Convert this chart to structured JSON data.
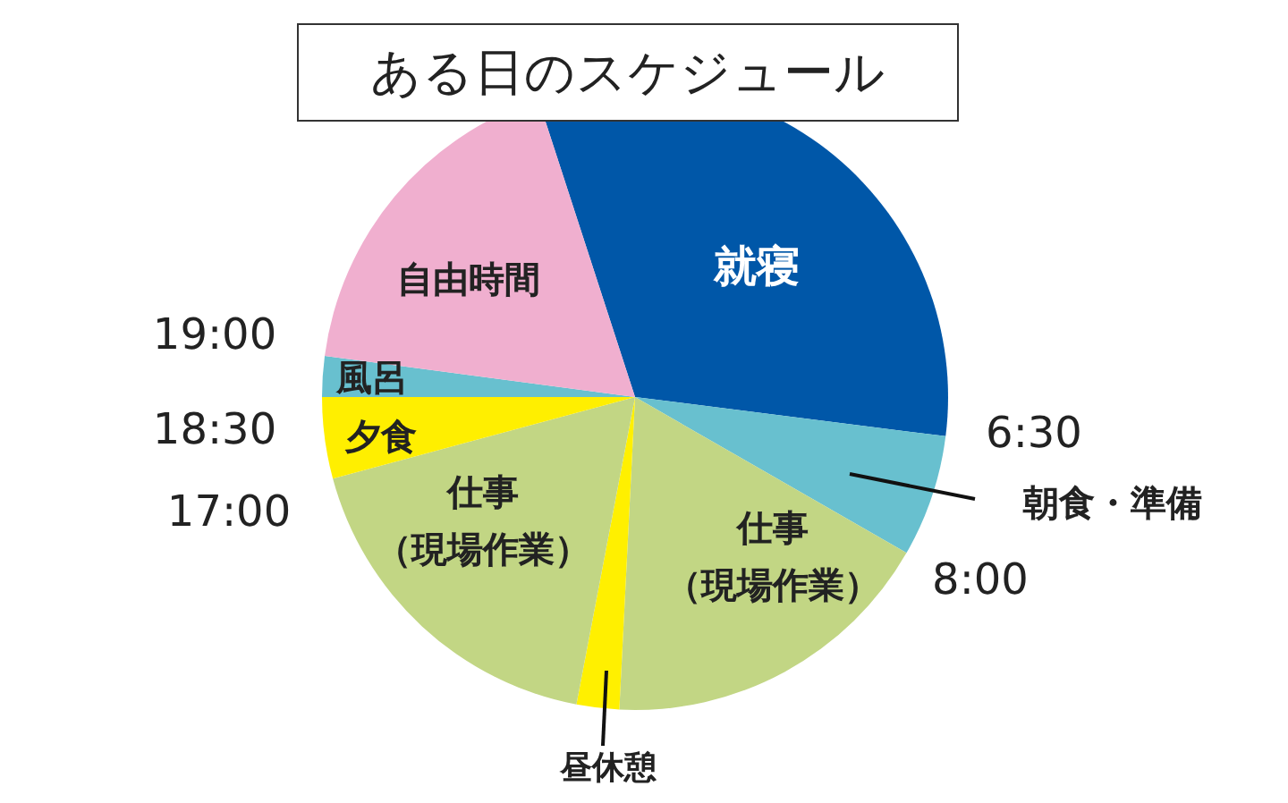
{
  "chart_data": {
    "type": "pie",
    "title": "ある日のスケジュール",
    "categories": [
      "就寝",
      "朝食・準備",
      "仕事（現場作業）",
      "昼休憩",
      "仕事（現場作業）",
      "夕食",
      "風呂",
      "自由時間"
    ],
    "values": [
      32.0,
      6.3,
      17.5,
      2.2,
      17.8,
      4.2,
      2.1,
      17.9
    ],
    "colors": [
      "#0057a8",
      "#68c0cf",
      "#c2d684",
      "#fff000",
      "#c2d684",
      "#ffef00",
      "#68c0cf",
      "#f0afcf"
    ],
    "annotations": [
      "6:30",
      "8:00",
      "17:00",
      "18:30",
      "19:00"
    ]
  }
}
